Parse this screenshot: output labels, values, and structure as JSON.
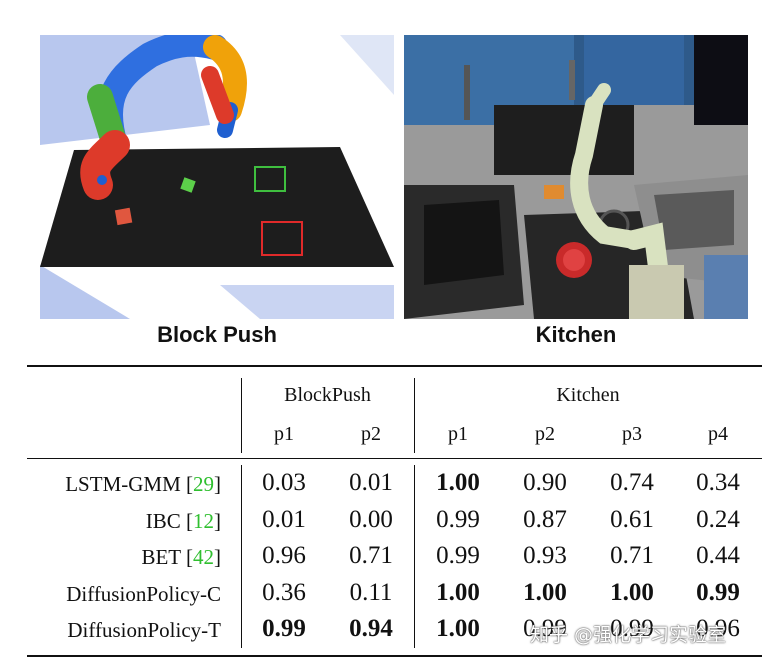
{
  "figures": [
    {
      "caption": "Block Push"
    },
    {
      "caption": "Kitchen"
    }
  ],
  "table": {
    "groups": [
      {
        "label": "BlockPush",
        "columns": [
          "p1",
          "p2"
        ]
      },
      {
        "label": "Kitchen",
        "columns": [
          "p1",
          "p2",
          "p3",
          "p4"
        ]
      }
    ],
    "rows": [
      {
        "method": "LSTM-GMM",
        "ref": "29",
        "values": [
          "0.03",
          "0.01",
          "1.00",
          "0.90",
          "0.74",
          "0.34"
        ],
        "bold": [
          false,
          false,
          true,
          false,
          false,
          false
        ]
      },
      {
        "method": "IBC",
        "ref": "12",
        "values": [
          "0.01",
          "0.00",
          "0.99",
          "0.87",
          "0.61",
          "0.24"
        ],
        "bold": [
          false,
          false,
          false,
          false,
          false,
          false
        ]
      },
      {
        "method": "BET",
        "ref": "42",
        "values": [
          "0.96",
          "0.71",
          "0.99",
          "0.93",
          "0.71",
          "0.44"
        ],
        "bold": [
          false,
          false,
          false,
          false,
          false,
          false
        ]
      },
      {
        "method": "DiffusionPolicy-C",
        "ref": "",
        "values": [
          "0.36",
          "0.11",
          "1.00",
          "1.00",
          "1.00",
          "0.99"
        ],
        "bold": [
          false,
          false,
          true,
          true,
          true,
          true
        ]
      },
      {
        "method": "DiffusionPolicy-T",
        "ref": "",
        "values": [
          "0.99",
          "0.94",
          "1.00",
          "0.99",
          "0.99",
          "0.96"
        ],
        "bold": [
          true,
          true,
          true,
          false,
          false,
          false
        ]
      }
    ]
  },
  "watermark": "知乎 @强化学习实验室"
}
